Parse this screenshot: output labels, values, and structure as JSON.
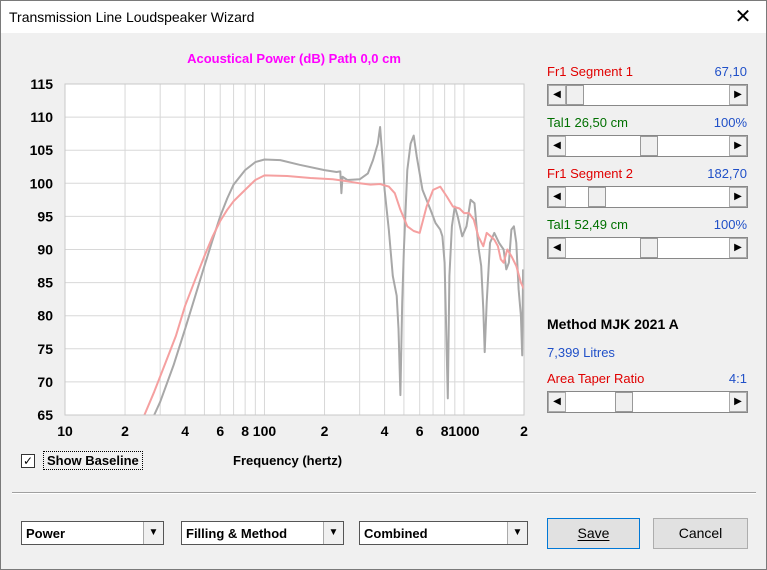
{
  "window": {
    "title": "Transmission Line Loudspeaker Wizard"
  },
  "chart_data": {
    "type": "line",
    "title": "Acoustical Power (dB)   Path 0,0 cm",
    "xlabel": "Frequency (hertz)",
    "ylabel": "",
    "x_scale": "log",
    "xlim": [
      10,
      2000
    ],
    "ylim": [
      65,
      115
    ],
    "x_tick_labels": [
      {
        "value": 10,
        "label": "10"
      },
      {
        "value": 20,
        "label": "2"
      },
      {
        "value": 40,
        "label": "4"
      },
      {
        "value": 60,
        "label": "6"
      },
      {
        "value": 80,
        "label": "8"
      },
      {
        "value": 100,
        "label": "100"
      },
      {
        "value": 200,
        "label": "2"
      },
      {
        "value": 400,
        "label": "4"
      },
      {
        "value": 600,
        "label": "6"
      },
      {
        "value": 800,
        "label": "8"
      },
      {
        "value": 1000,
        "label": "1000"
      },
      {
        "value": 2000,
        "label": "2"
      }
    ],
    "y_ticks": [
      65,
      70,
      75,
      80,
      85,
      90,
      95,
      100,
      105,
      110,
      115
    ],
    "grid": true,
    "series": [
      {
        "color": "#a8a8a8",
        "points": [
          [
            28,
            65
          ],
          [
            30,
            67
          ],
          [
            35,
            72.5
          ],
          [
            40,
            78
          ],
          [
            45,
            83
          ],
          [
            50,
            87.5
          ],
          [
            55,
            91.5
          ],
          [
            60,
            95
          ],
          [
            65,
            97.7
          ],
          [
            70,
            99.8
          ],
          [
            80,
            102
          ],
          [
            90,
            103.2
          ],
          [
            100,
            103.6
          ],
          [
            120,
            103.5
          ],
          [
            150,
            102.8
          ],
          [
            200,
            102
          ],
          [
            230,
            101.7
          ],
          [
            240,
            101.8
          ],
          [
            243,
            98.5
          ],
          [
            246,
            101
          ],
          [
            260,
            100.5
          ],
          [
            300,
            100.6
          ],
          [
            330,
            101.5
          ],
          [
            350,
            103.5
          ],
          [
            370,
            106
          ],
          [
            380,
            108.5
          ],
          [
            390,
            104
          ],
          [
            400,
            99
          ],
          [
            420,
            93
          ],
          [
            440,
            86
          ],
          [
            460,
            83
          ],
          [
            470,
            78
          ],
          [
            480,
            68
          ],
          [
            490,
            82
          ],
          [
            500,
            90
          ],
          [
            520,
            102
          ],
          [
            540,
            106
          ],
          [
            560,
            107.2
          ],
          [
            580,
            104
          ],
          [
            620,
            99
          ],
          [
            680,
            96
          ],
          [
            720,
            94
          ],
          [
            760,
            93
          ],
          [
            780,
            92
          ],
          [
            800,
            88
          ],
          [
            820,
            74
          ],
          [
            830,
            67.5
          ],
          [
            845,
            86
          ],
          [
            870,
            93.5
          ],
          [
            900,
            96.5
          ],
          [
            930,
            95
          ],
          [
            980,
            92
          ],
          [
            1030,
            93.5
          ],
          [
            1080,
            97.5
          ],
          [
            1130,
            97
          ],
          [
            1180,
            90.5
          ],
          [
            1220,
            87.5
          ],
          [
            1250,
            81
          ],
          [
            1270,
            74.5
          ],
          [
            1300,
            82
          ],
          [
            1350,
            91
          ],
          [
            1420,
            92.5
          ],
          [
            1500,
            91
          ],
          [
            1580,
            90
          ],
          [
            1630,
            87
          ],
          [
            1680,
            88
          ],
          [
            1730,
            93
          ],
          [
            1780,
            93.5
          ],
          [
            1830,
            91
          ],
          [
            1880,
            84
          ],
          [
            1930,
            80
          ],
          [
            1960,
            74
          ],
          [
            1980,
            87
          ]
        ]
      },
      {
        "color": "#f5a0a0",
        "points": [
          [
            25,
            65
          ],
          [
            28,
            68.5
          ],
          [
            32,
            73
          ],
          [
            36,
            77
          ],
          [
            40,
            81.5
          ],
          [
            45,
            85.5
          ],
          [
            50,
            89
          ],
          [
            55,
            92
          ],
          [
            60,
            94.3
          ],
          [
            65,
            96
          ],
          [
            70,
            97.3
          ],
          [
            80,
            99
          ],
          [
            90,
            100.5
          ],
          [
            100,
            101.2
          ],
          [
            130,
            101.1
          ],
          [
            170,
            100.8
          ],
          [
            220,
            100.6
          ],
          [
            260,
            100.3
          ],
          [
            300,
            100
          ],
          [
            340,
            99.8
          ],
          [
            380,
            99.9
          ],
          [
            420,
            99.5
          ],
          [
            450,
            98.5
          ],
          [
            480,
            96
          ],
          [
            520,
            93.5
          ],
          [
            560,
            92.8
          ],
          [
            600,
            92.5
          ],
          [
            650,
            96.5
          ],
          [
            700,
            99
          ],
          [
            760,
            99.5
          ],
          [
            820,
            98
          ],
          [
            880,
            96.5
          ],
          [
            950,
            96.2
          ],
          [
            1000,
            95.5
          ],
          [
            1060,
            95.5
          ],
          [
            1120,
            94.5
          ],
          [
            1180,
            92
          ],
          [
            1250,
            90.5
          ],
          [
            1300,
            92.5
          ],
          [
            1360,
            92
          ],
          [
            1420,
            91.5
          ],
          [
            1480,
            90.5
          ],
          [
            1530,
            88.5
          ],
          [
            1580,
            88
          ],
          [
            1650,
            90
          ],
          [
            1730,
            89
          ],
          [
            1830,
            87.5
          ],
          [
            1930,
            85
          ],
          [
            2000,
            84
          ]
        ]
      }
    ]
  },
  "right_panel": {
    "seg1": {
      "label": "Fr1  Segment 1",
      "value": "67,10",
      "thumb": 0.0
    },
    "tal1a": {
      "label": "Tal1  26,50 cm",
      "value": "100%",
      "thumb": 0.5
    },
    "seg2": {
      "label": "Fr1  Segment 2",
      "value": "182,70",
      "thumb": 0.15
    },
    "tal1b": {
      "label": "Tal1  52,49 cm",
      "value": "100%",
      "thumb": 0.5
    },
    "method": "Method MJK 2021 A",
    "volume": "7,399 Litres",
    "taper": {
      "label": "Area Taper Ratio",
      "value": "4:1",
      "thumb": 0.33
    }
  },
  "bottom": {
    "show_baseline": {
      "label": "Show Baseline",
      "checked": true,
      "check_mark": "✓"
    },
    "dropdowns": [
      "Power",
      "Filling & Method",
      "Combined"
    ],
    "save_label": "Save",
    "cancel_label": "Cancel"
  }
}
